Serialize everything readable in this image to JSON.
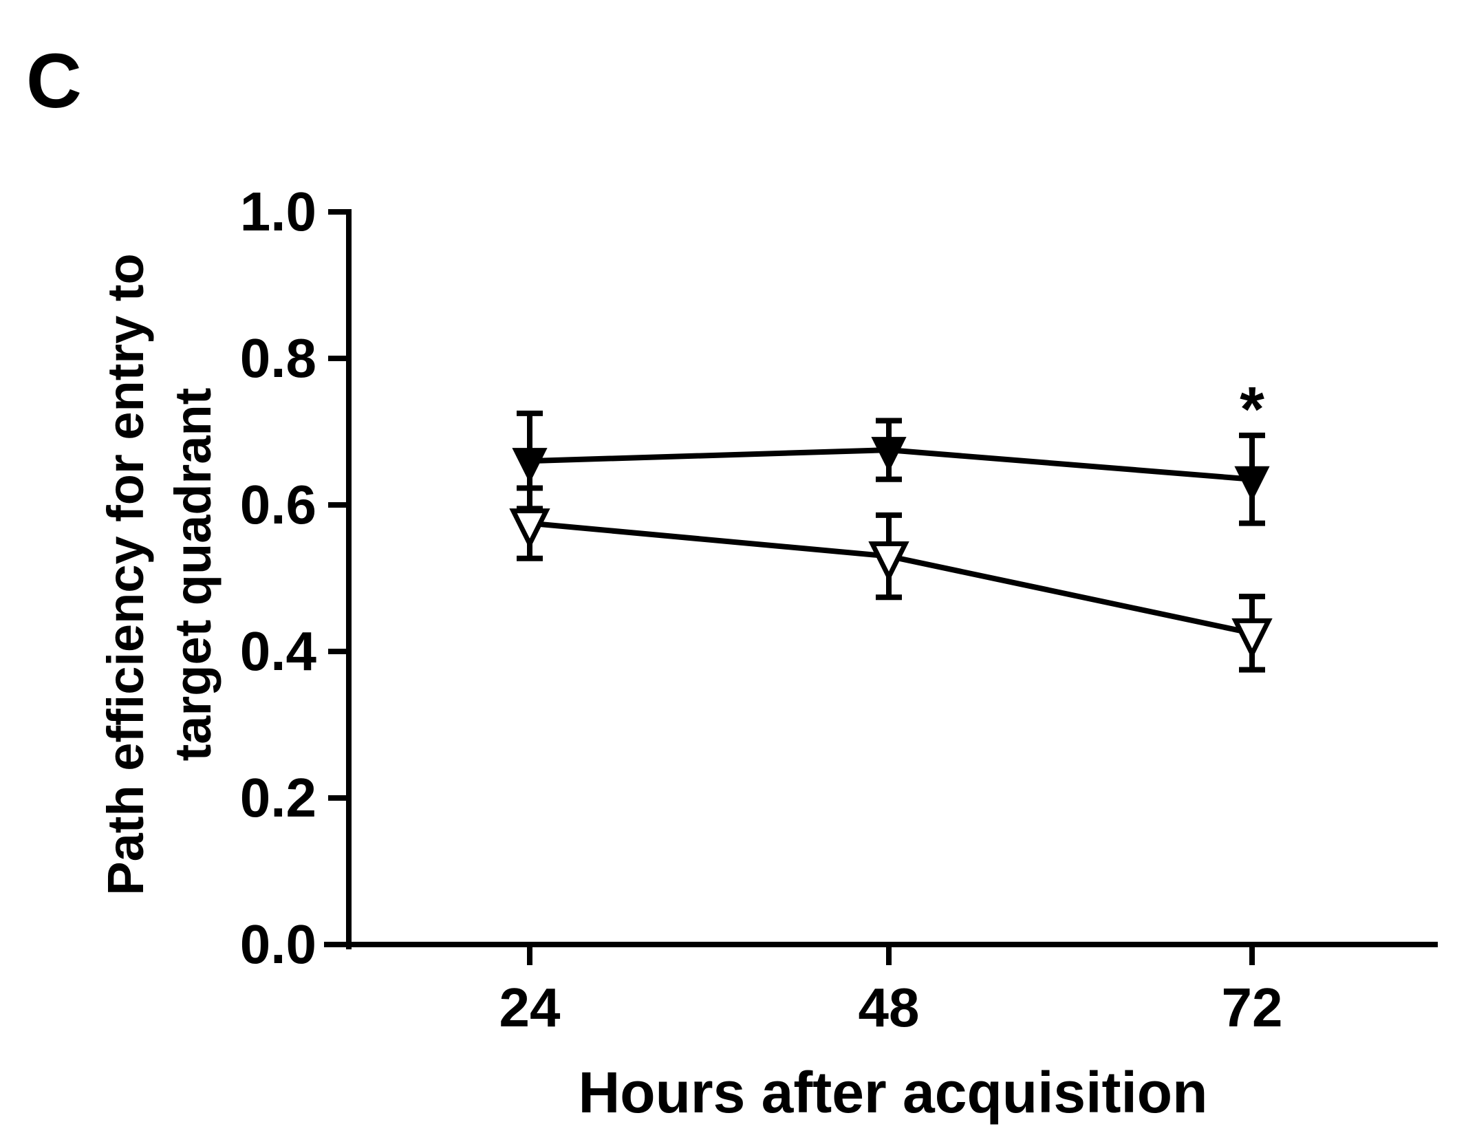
{
  "panel_label": "C",
  "chart_data": {
    "type": "line",
    "title": "",
    "xlabel": "Hours after acquisition",
    "ylabel_lines": [
      "Path efficiency for entry to",
      "target quadrant"
    ],
    "x": [
      24,
      48,
      72
    ],
    "x_tick_labels": [
      "24",
      "48",
      "72"
    ],
    "ylim": [
      0,
      1.0
    ],
    "y_ticks": [
      0.0,
      0.2,
      0.4,
      0.6,
      0.8,
      1.0
    ],
    "y_tick_labels": [
      "0.0",
      "0.2",
      "0.4",
      "0.6",
      "0.8",
      "1.0"
    ],
    "grid": false,
    "legend": "none",
    "series": [
      {
        "marker": "filled-down-triangle",
        "color": "#000000",
        "values": [
          0.66,
          0.675,
          0.635
        ],
        "error": [
          0.065,
          0.04,
          0.06
        ]
      },
      {
        "marker": "open-down-triangle",
        "color": "#000000",
        "values": [
          0.575,
          0.53,
          0.425
        ],
        "error": [
          0.048,
          0.056,
          0.05
        ]
      }
    ],
    "annotations": [
      {
        "text": "*",
        "x": 72,
        "y": 0.75
      }
    ]
  }
}
